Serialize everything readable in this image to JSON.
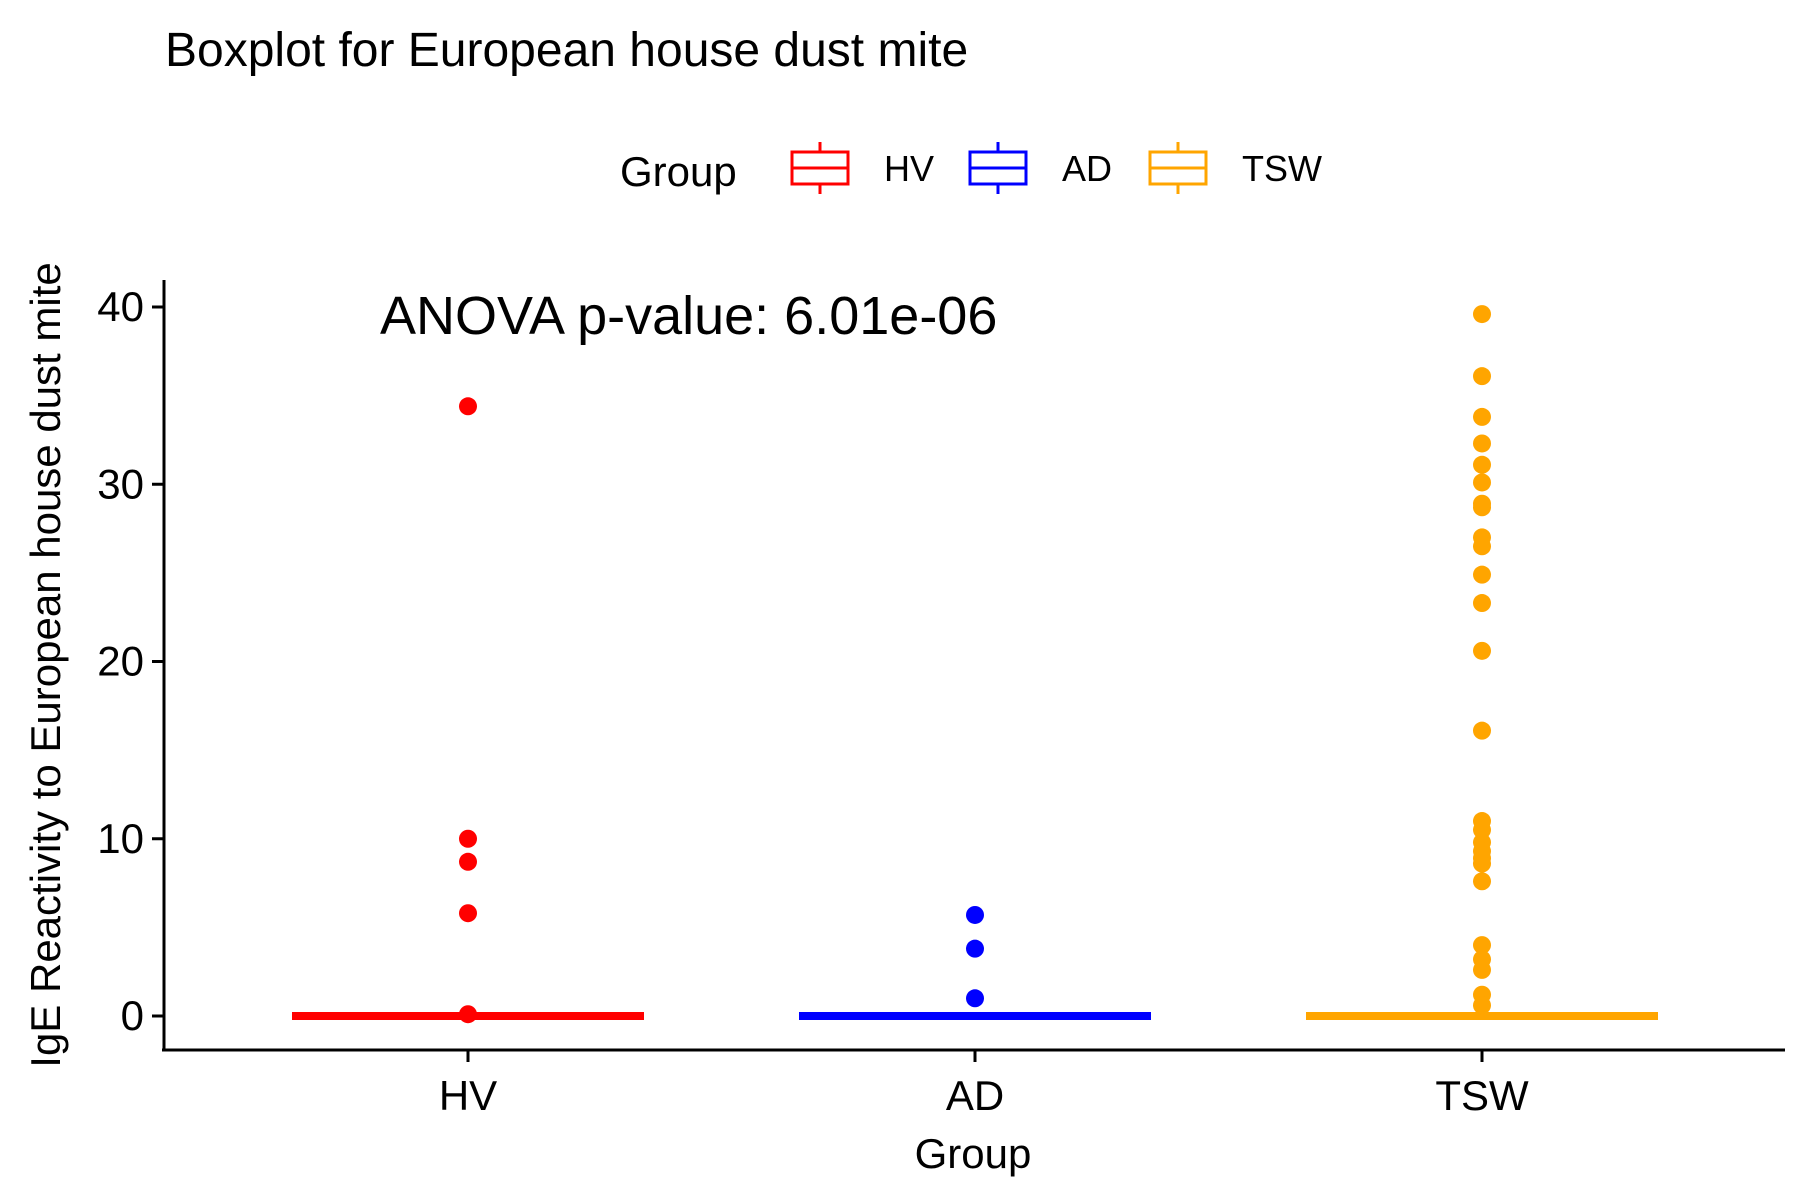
{
  "chart_data": {
    "type": "box",
    "title": "Boxplot for European house dust mite",
    "xlabel": "Group",
    "ylabel": "IgE Reactivity to European house dust mite",
    "ylim": [
      -2,
      41.5
    ],
    "yticks": [
      0,
      10,
      20,
      30,
      40
    ],
    "categories": [
      "HV",
      "AD",
      "TSW"
    ],
    "annotation": "ANOVA p-value: 6.01e-06",
    "grid": false,
    "legend": {
      "title": "Group",
      "position": "top",
      "entries": [
        "HV",
        "AD",
        "TSW"
      ]
    },
    "series": [
      {
        "name": "HV",
        "color": "#ff0000",
        "box": {
          "q1": 0,
          "median": 0,
          "q3": 0,
          "whisker_low": 0,
          "whisker_high": 0
        },
        "outliers": [
          34.4,
          10.0,
          8.7,
          5.8,
          0.1
        ]
      },
      {
        "name": "AD",
        "color": "#0000ff",
        "box": {
          "q1": 0,
          "median": 0,
          "q3": 0,
          "whisker_low": 0,
          "whisker_high": 0
        },
        "outliers": [
          5.7,
          3.8,
          1.0
        ]
      },
      {
        "name": "TSW",
        "color": "#ffa500",
        "box": {
          "q1": 0,
          "median": 0,
          "q3": 0,
          "whisker_low": 0,
          "whisker_high": 0
        },
        "outliers": [
          39.6,
          36.1,
          33.8,
          32.3,
          31.1,
          30.1,
          28.9,
          28.7,
          27.0,
          26.5,
          24.9,
          23.3,
          20.6,
          16.1,
          11.0,
          10.5,
          9.8,
          9.3,
          8.9,
          8.6,
          7.6,
          4.0,
          3.2,
          2.6,
          1.2,
          0.6
        ]
      }
    ]
  }
}
